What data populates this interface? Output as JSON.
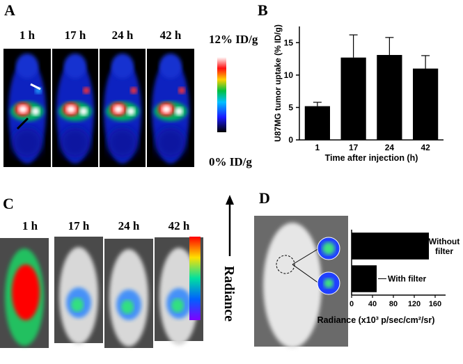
{
  "panels": {
    "A": {
      "label": "A",
      "times": [
        "1 h",
        "17 h",
        "24 h",
        "42 h"
      ],
      "scale_max": "12% ID/g",
      "scale_min": "0% ID/g"
    },
    "B": {
      "label": "B"
    },
    "C": {
      "label": "C",
      "times": [
        "1 h",
        "17 h",
        "24 h",
        "42 h"
      ],
      "scale_label": "Radiance"
    },
    "D": {
      "label": "D"
    }
  },
  "chart_data": [
    {
      "type": "bar",
      "orientation": "vertical",
      "categories": [
        "1",
        "17",
        "24",
        "42"
      ],
      "values": [
        5.2,
        12.7,
        13.1,
        11.0
      ],
      "errors": [
        0.6,
        3.5,
        2.7,
        2.0
      ],
      "color": "#000000",
      "xlabel": "Time after injection (h)",
      "ylabel": "U87MG tumor uptake (% ID/g)",
      "ylim": [
        0,
        17.5
      ],
      "yticks": [
        0,
        5,
        10,
        15
      ]
    },
    {
      "type": "bar",
      "orientation": "horizontal",
      "categories": [
        "Without filter",
        "With filter"
      ],
      "values": [
        148,
        48
      ],
      "color": "#000000",
      "xlabel": "Radiance (x10³ p/sec/cm²/sr)",
      "xlim": [
        0,
        180
      ],
      "xticks": [
        0,
        40,
        80,
        120,
        160
      ]
    }
  ]
}
